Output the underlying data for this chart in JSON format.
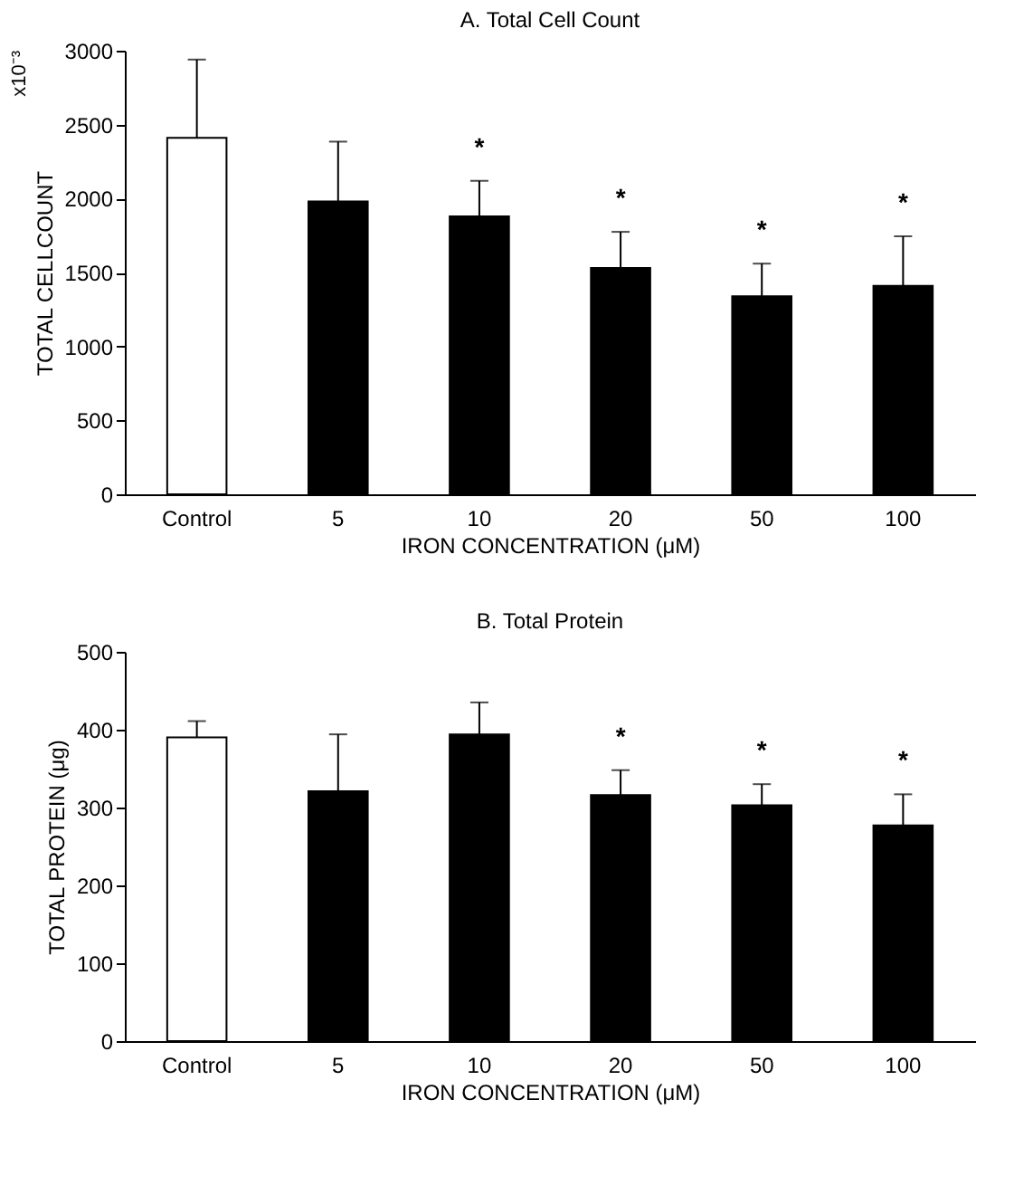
{
  "chart_data": [
    {
      "type": "bar",
      "title": "A. Total Cell Count",
      "xlabel": "IRON CONCENTRATION (μM)",
      "ylabel": "TOTAL CELLCOUNT",
      "categories": [
        "Control",
        "5",
        "10",
        "20",
        "50",
        "100"
      ],
      "values": [
        2410,
        1980,
        1880,
        1530,
        1340,
        1410
      ],
      "colors": [
        "#ffffff",
        "#000000",
        "#000000",
        "#000000",
        "#000000",
        "#000000"
      ],
      "errors": [
        [
          2410,
          2940
        ],
        [
          1980,
          2385
        ],
        [
          1880,
          2120
        ],
        [
          1530,
          1775
        ],
        [
          1340,
          1560
        ],
        [
          1410,
          1745
        ]
      ],
      "ylim": [
        0,
        3000
      ],
      "yticks": [
        0,
        500,
        1000,
        1500,
        2000,
        2500,
        3000
      ],
      "grid": false,
      "legend": false,
      "annotations": [
        "x10⁻³",
        {
          "text": "*",
          "x": "10",
          "y": 2120
        },
        {
          "text": "*",
          "x": "20",
          "y": 1775
        },
        {
          "text": "*",
          "x": "50",
          "y": 1560
        },
        {
          "text": "*",
          "x": "100",
          "y": 1745
        }
      ]
    },
    {
      "type": "bar",
      "title": "B. Total Protein",
      "xlabel": "IRON CONCENTRATION (μM)",
      "ylabel": "TOTAL PROTEIN (μg)",
      "categories": [
        "Control",
        "5",
        "10",
        "20",
        "50",
        "100"
      ],
      "values": [
        390,
        321,
        394,
        316,
        303,
        277
      ],
      "colors": [
        "#ffffff",
        "#000000",
        "#000000",
        "#000000",
        "#000000",
        "#000000"
      ],
      "errors": [
        [
          390,
          411
        ],
        [
          321,
          394
        ],
        [
          394,
          435
        ],
        [
          316,
          348
        ],
        [
          303,
          330
        ],
        [
          277,
          317
        ]
      ],
      "ylim": [
        0,
        500
      ],
      "yticks": [
        0,
        100,
        200,
        300,
        400,
        500
      ],
      "grid": false,
      "legend": false,
      "annotations": [
        {
          "text": "*",
          "x": "20",
          "y": 348
        },
        {
          "text": "*",
          "x": "50",
          "y": 330
        },
        {
          "text": "*",
          "x": "100",
          "y": 317
        }
      ]
    }
  ]
}
